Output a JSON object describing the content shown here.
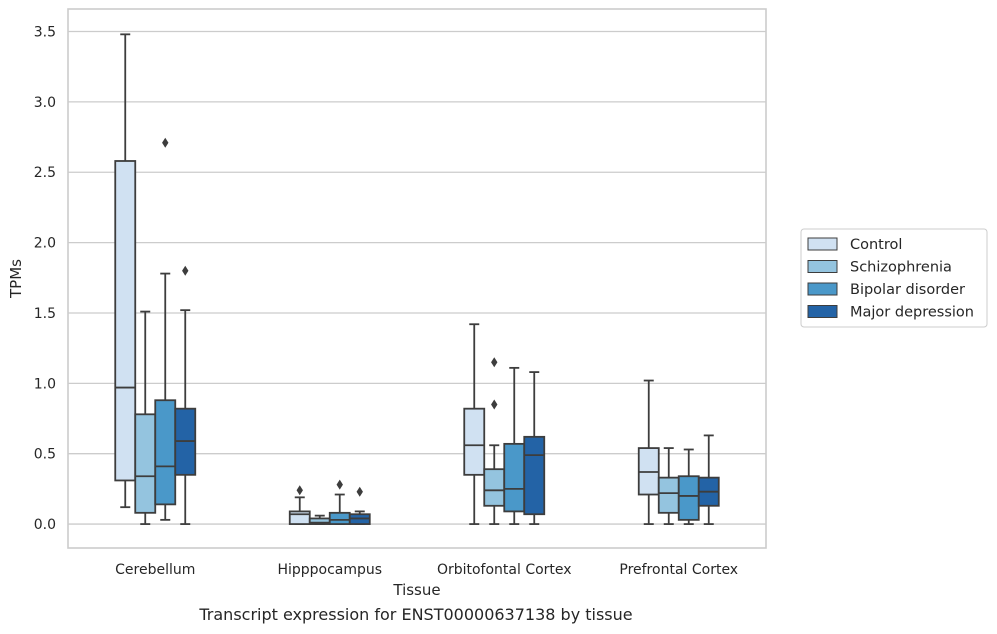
{
  "caption": "Transcript expression for ENST00000637138 by tissue",
  "chart_data": {
    "type": "box",
    "xlabel": "Tissue",
    "ylabel": "TPMs",
    "ylim": [
      -0.17,
      3.66
    ],
    "yticks": [
      0.0,
      0.5,
      1.0,
      1.5,
      2.0,
      2.5,
      3.0,
      3.5
    ],
    "ytick_labels": [
      "0.0",
      "0.5",
      "1.0",
      "1.5",
      "2.0",
      "2.5",
      "3.0",
      "3.5"
    ],
    "grid": "horizontal",
    "legend_position": "right",
    "categories": [
      "Cerebellum",
      "Hipppocampus",
      "Orbitofontal Cortex",
      "Prefrontal Cortex"
    ],
    "series": [
      {
        "name": "Control",
        "color": "#d0e1f2",
        "boxes": [
          {
            "whislo": 0.12,
            "q1": 0.31,
            "med": 0.97,
            "q3": 2.58,
            "whishi": 3.48,
            "fliers": []
          },
          {
            "whislo": 0.0,
            "q1": 0.0,
            "med": 0.07,
            "q3": 0.09,
            "whishi": 0.19,
            "fliers": [
              0.24
            ]
          },
          {
            "whislo": 0.0,
            "q1": 0.35,
            "med": 0.56,
            "q3": 0.82,
            "whishi": 1.42,
            "fliers": []
          },
          {
            "whislo": 0.0,
            "q1": 0.21,
            "med": 0.37,
            "q3": 0.54,
            "whishi": 1.02,
            "fliers": []
          }
        ]
      },
      {
        "name": "Schizophrenia",
        "color": "#94c4df",
        "boxes": [
          {
            "whislo": 0.0,
            "q1": 0.08,
            "med": 0.34,
            "q3": 0.78,
            "whishi": 1.51,
            "fliers": []
          },
          {
            "whislo": 0.0,
            "q1": 0.0,
            "med": 0.01,
            "q3": 0.04,
            "whishi": 0.06,
            "fliers": []
          },
          {
            "whislo": 0.0,
            "q1": 0.13,
            "med": 0.24,
            "q3": 0.39,
            "whishi": 0.56,
            "fliers": [
              0.85,
              1.15
            ]
          },
          {
            "whislo": 0.0,
            "q1": 0.08,
            "med": 0.22,
            "q3": 0.33,
            "whishi": 0.54,
            "fliers": []
          }
        ]
      },
      {
        "name": "Bipolar disorder",
        "color": "#4a98c9",
        "boxes": [
          {
            "whislo": 0.03,
            "q1": 0.14,
            "med": 0.41,
            "q3": 0.88,
            "whishi": 1.78,
            "fliers": [
              2.71
            ]
          },
          {
            "whislo": 0.0,
            "q1": 0.0,
            "med": 0.03,
            "q3": 0.08,
            "whishi": 0.21,
            "fliers": [
              0.28
            ]
          },
          {
            "whislo": 0.0,
            "q1": 0.09,
            "med": 0.25,
            "q3": 0.57,
            "whishi": 1.11,
            "fliers": []
          },
          {
            "whislo": 0.0,
            "q1": 0.03,
            "med": 0.2,
            "q3": 0.34,
            "whishi": 0.53,
            "fliers": []
          }
        ]
      },
      {
        "name": "Major depression",
        "color": "#2363a6",
        "boxes": [
          {
            "whislo": 0.0,
            "q1": 0.35,
            "med": 0.59,
            "q3": 0.82,
            "whishi": 1.52,
            "fliers": [
              1.8
            ]
          },
          {
            "whislo": 0.0,
            "q1": 0.0,
            "med": 0.04,
            "q3": 0.07,
            "whishi": 0.09,
            "fliers": [
              0.23
            ]
          },
          {
            "whislo": 0.0,
            "q1": 0.07,
            "med": 0.49,
            "q3": 0.62,
            "whishi": 1.08,
            "fliers": []
          },
          {
            "whislo": 0.0,
            "q1": 0.13,
            "med": 0.23,
            "q3": 0.33,
            "whishi": 0.63,
            "fliers": []
          }
        ]
      }
    ]
  }
}
